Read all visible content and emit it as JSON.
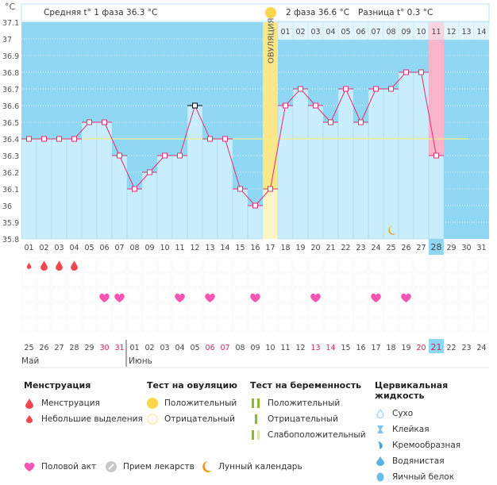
{
  "header": {
    "unit": "°C",
    "phase1": "Средняя t° 1 фаза 36.3 °C",
    "phase2": "2 фаза 36.6 °C",
    "diff": "Разница t° 0.3 °C",
    "ovulation": "ОВУЛЯЦИЯ"
  },
  "chart_data": {
    "type": "line",
    "ylabel": "°C",
    "ylim": [
      35.8,
      37.1
    ],
    "yticks": [
      "37.1",
      "37",
      "36.9",
      "36.8",
      "36.7",
      "36.6",
      "36.5",
      "36.4",
      "36.3",
      "36.2",
      "36.1",
      "36",
      "35.9",
      "35.8"
    ],
    "cycle_days": [
      "01",
      "02",
      "03",
      "04",
      "05",
      "06",
      "07",
      "08",
      "09",
      "10",
      "11",
      "12",
      "13",
      "14",
      "15",
      "16",
      "17",
      "18",
      "19",
      "20",
      "21",
      "22",
      "23",
      "24",
      "25",
      "26",
      "27",
      "28",
      "29",
      "30",
      "31"
    ],
    "temps": [
      36.4,
      36.4,
      36.4,
      36.4,
      36.5,
      36.5,
      36.3,
      36.1,
      36.2,
      36.3,
      36.3,
      36.6,
      36.4,
      36.4,
      36.1,
      36.0,
      36.1,
      36.6,
      36.7,
      36.6,
      36.5,
      36.7,
      36.5,
      36.7,
      36.7,
      36.8,
      36.8,
      36.3
    ],
    "coverline": 36.4,
    "ovulation_day": 17,
    "current_day": 28,
    "phase2_days": [
      "01",
      "02",
      "03",
      "04",
      "05",
      "06",
      "07",
      "08",
      "09",
      "10",
      "11",
      "12",
      "13",
      "14"
    ],
    "phase2_highlight": "11",
    "moon_day": 25,
    "menstruation": {
      "small": [
        1
      ],
      "full": [
        2,
        3,
        4
      ]
    },
    "intercourse_days": [
      6,
      7,
      11,
      13,
      16,
      20,
      24,
      26
    ],
    "dates": [
      "25",
      "26",
      "27",
      "28",
      "29",
      "30",
      "31",
      "01",
      "02",
      "03",
      "04",
      "05",
      "06",
      "07",
      "08",
      "09",
      "10",
      "11",
      "12",
      "13",
      "14",
      "15",
      "16",
      "17",
      "18",
      "19",
      "20",
      "21",
      "22",
      "23",
      "24"
    ],
    "weekend_dates": [
      5,
      6,
      12,
      13,
      19,
      20,
      26,
      27
    ],
    "today_index": 28,
    "months": [
      "Май",
      "Июнь"
    ],
    "colors": {
      "bg": "#8fd7f2",
      "bar": "#c9edfb",
      "line": "#e0306f",
      "coverline": "#f5f08a",
      "ovulation": "#fbe78a",
      "pink": "#f8b4c8",
      "weekend": "#d6245c"
    }
  },
  "legend": {
    "menstruation": {
      "title": "Менструация",
      "items": [
        "Менструация",
        "Небольшие выделения"
      ]
    },
    "ovulation_test": {
      "title": "Тест на овуляцию",
      "items": [
        "Положительный",
        "Отрицательный"
      ]
    },
    "pregnancy_test": {
      "title": "Тест на беременность",
      "items": [
        "Положительный",
        "Отрицательный",
        "Слабоположительный"
      ]
    },
    "cervical": {
      "title": "Цервикальная жидкость",
      "items": [
        "Сухо",
        "Клейкая",
        "Кремообразная",
        "Водянистая",
        "Яичный белок"
      ]
    },
    "bottom": [
      "Половой акт",
      "Прием лекарств",
      "Лунный календарь"
    ]
  }
}
